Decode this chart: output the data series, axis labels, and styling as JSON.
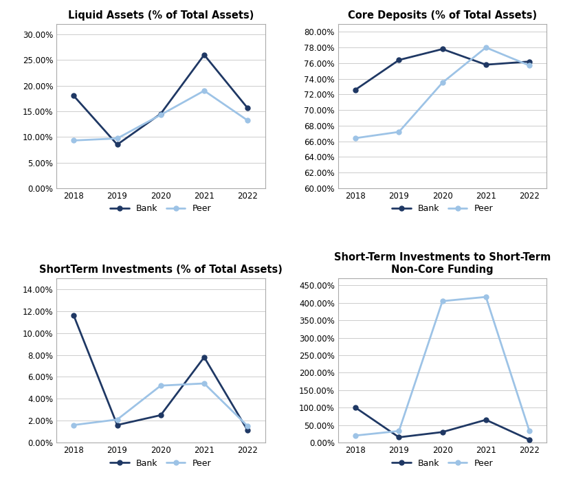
{
  "years": [
    2018,
    2019,
    2020,
    2021,
    2022
  ],
  "charts": [
    {
      "title": "Liquid Assets (% of Total Assets)",
      "bank": [
        0.18,
        0.085,
        0.145,
        0.26,
        0.156
      ],
      "peer": [
        0.093,
        0.097,
        0.143,
        0.19,
        0.132
      ],
      "ylim": [
        0.0,
        0.32
      ],
      "yticks": [
        0.0,
        0.05,
        0.1,
        0.15,
        0.2,
        0.25,
        0.3
      ],
      "decimals": 2
    },
    {
      "title": "Core Deposits (% of Total Assets)",
      "bank": [
        0.726,
        0.764,
        0.778,
        0.758,
        0.762
      ],
      "peer": [
        0.664,
        0.672,
        0.735,
        0.78,
        0.757
      ],
      "ylim": [
        0.6,
        0.81
      ],
      "yticks": [
        0.6,
        0.62,
        0.64,
        0.66,
        0.68,
        0.7,
        0.72,
        0.74,
        0.76,
        0.78,
        0.8
      ],
      "decimals": 2
    },
    {
      "title": "ShortTerm Investments (% of Total Assets)",
      "bank": [
        0.116,
        0.016,
        0.025,
        0.078,
        0.011
      ],
      "peer": [
        0.016,
        0.021,
        0.052,
        0.054,
        0.015
      ],
      "ylim": [
        0.0,
        0.15
      ],
      "yticks": [
        0.0,
        0.02,
        0.04,
        0.06,
        0.08,
        0.1,
        0.12,
        0.14
      ],
      "decimals": 2
    },
    {
      "title": "Short-Term Investments to Short-Term\nNon-Core Funding",
      "bank": [
        1.0,
        0.15,
        0.3,
        0.65,
        0.08
      ],
      "peer": [
        0.2,
        0.33,
        4.05,
        4.17,
        0.33
      ],
      "ylim": [
        0.0,
        4.7
      ],
      "yticks": [
        0.0,
        0.5,
        1.0,
        1.5,
        2.0,
        2.5,
        3.0,
        3.5,
        4.0,
        4.5
      ],
      "decimals": 2
    }
  ],
  "bank_color": "#1F3864",
  "peer_color": "#9DC3E6",
  "bank_label": "Bank",
  "peer_label": "Peer",
  "bg_color": "#FFFFFF",
  "grid_color": "#CCCCCC",
  "title_fontsize": 10.5,
  "tick_fontsize": 8.5,
  "legend_fontsize": 9,
  "marker": "o",
  "linewidth": 2.0,
  "markersize": 5
}
